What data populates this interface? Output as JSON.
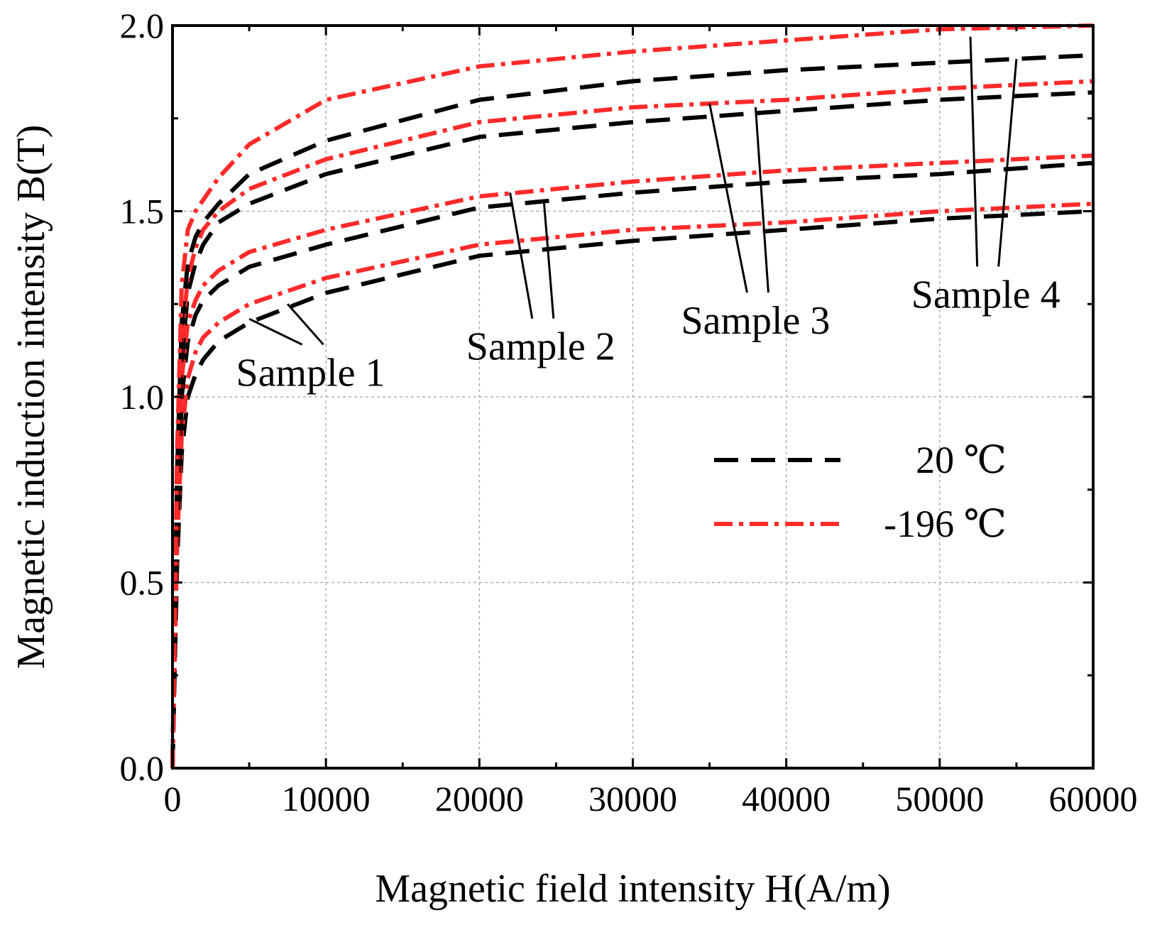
{
  "chart_data": {
    "type": "line",
    "title": "",
    "xlabel": "Magnetic field intensity H(A/m)",
    "ylabel": "Magnetic induction intensity B(T)",
    "xlim": [
      0,
      60000
    ],
    "ylim": [
      0,
      2.0
    ],
    "xticks": [
      0,
      10000,
      20000,
      30000,
      40000,
      50000,
      60000
    ],
    "xtick_labels": [
      "0",
      "10000",
      "20000",
      "30000",
      "40000",
      "50000",
      "60000"
    ],
    "yticks": [
      0,
      0.5,
      1.0,
      1.5,
      2.0
    ],
    "ytick_labels": [
      "0.0",
      "0.5",
      "1.0",
      "1.5",
      "2.0"
    ],
    "grid": true,
    "legend_position": "center-right",
    "legend": [
      {
        "label": "20 ℃",
        "color": "#000000",
        "style": "dashed"
      },
      {
        "label": "-196 ℃",
        "color": "#ff2a2a",
        "style": "dash-dot"
      }
    ],
    "series": [
      {
        "name": "Sample 1, 20 ℃",
        "temperature": "20 ℃",
        "sample": "Sample 1",
        "x": [
          0,
          300,
          600,
          1000,
          1500,
          2000,
          3000,
          5000,
          10000,
          20000,
          30000,
          40000,
          50000,
          60000
        ],
        "y": [
          0,
          0.55,
          0.85,
          1.0,
          1.06,
          1.1,
          1.15,
          1.2,
          1.28,
          1.38,
          1.42,
          1.45,
          1.48,
          1.5
        ]
      },
      {
        "name": "Sample 1, -196 ℃",
        "temperature": "-196 ℃",
        "sample": "Sample 1",
        "x": [
          0,
          300,
          600,
          1000,
          1500,
          2000,
          3000,
          5000,
          10000,
          20000,
          30000,
          40000,
          50000,
          60000
        ],
        "y": [
          0,
          0.6,
          0.9,
          1.05,
          1.12,
          1.16,
          1.2,
          1.25,
          1.32,
          1.41,
          1.45,
          1.47,
          1.5,
          1.52
        ]
      },
      {
        "name": "Sample 2, 20 ℃",
        "temperature": "20 ℃",
        "sample": "Sample 2",
        "x": [
          0,
          300,
          600,
          1000,
          1500,
          2000,
          3000,
          5000,
          10000,
          20000,
          30000,
          40000,
          50000,
          60000
        ],
        "y": [
          0,
          0.65,
          1.0,
          1.15,
          1.22,
          1.26,
          1.3,
          1.35,
          1.41,
          1.51,
          1.55,
          1.58,
          1.6,
          1.63
        ]
      },
      {
        "name": "Sample 2, -196 ℃",
        "temperature": "-196 ℃",
        "sample": "Sample 2",
        "x": [
          0,
          300,
          600,
          1000,
          1500,
          2000,
          3000,
          5000,
          10000,
          20000,
          30000,
          40000,
          50000,
          60000
        ],
        "y": [
          0,
          0.7,
          1.05,
          1.2,
          1.26,
          1.3,
          1.34,
          1.39,
          1.45,
          1.54,
          1.58,
          1.61,
          1.63,
          1.65
        ]
      },
      {
        "name": "Sample 3, 20 ℃",
        "temperature": "20 ℃",
        "sample": "Sample 3",
        "x": [
          0,
          300,
          600,
          1000,
          1500,
          2000,
          3000,
          5000,
          10000,
          20000,
          30000,
          40000,
          50000,
          60000
        ],
        "y": [
          0,
          0.7,
          1.1,
          1.28,
          1.36,
          1.41,
          1.47,
          1.52,
          1.6,
          1.7,
          1.74,
          1.77,
          1.8,
          1.82
        ]
      },
      {
        "name": "Sample 3, -196 ℃",
        "temperature": "-196 ℃",
        "sample": "Sample 3",
        "x": [
          0,
          300,
          600,
          1000,
          1500,
          2000,
          3000,
          5000,
          10000,
          20000,
          30000,
          40000,
          50000,
          60000
        ],
        "y": [
          0,
          0.75,
          1.15,
          1.32,
          1.4,
          1.45,
          1.5,
          1.56,
          1.64,
          1.74,
          1.78,
          1.8,
          1.83,
          1.85
        ]
      },
      {
        "name": "Sample 4, 20 ℃",
        "temperature": "20 ℃",
        "sample": "Sample 4",
        "x": [
          0,
          300,
          600,
          1000,
          1500,
          2000,
          3000,
          5000,
          10000,
          20000,
          30000,
          40000,
          50000,
          60000
        ],
        "y": [
          0,
          0.8,
          1.2,
          1.36,
          1.43,
          1.47,
          1.52,
          1.6,
          1.69,
          1.8,
          1.85,
          1.88,
          1.9,
          1.92
        ]
      },
      {
        "name": "Sample 4, -196 ℃",
        "temperature": "-196 ℃",
        "sample": "Sample 4",
        "x": [
          0,
          300,
          600,
          1000,
          1500,
          2000,
          3000,
          5000,
          10000,
          20000,
          30000,
          40000,
          50000,
          60000
        ],
        "y": [
          0,
          0.85,
          1.3,
          1.45,
          1.5,
          1.53,
          1.59,
          1.68,
          1.8,
          1.89,
          1.93,
          1.96,
          1.99,
          2.0
        ]
      }
    ],
    "annotations": [
      {
        "text": "Sample 1",
        "x": 9000,
        "y": 1.03,
        "targets": [
          [
            5000,
            1.21
          ],
          [
            7500,
            1.25
          ]
        ]
      },
      {
        "text": "Sample 2",
        "x": 24000,
        "y": 1.1,
        "targets": [
          [
            22000,
            1.55
          ],
          [
            24200,
            1.53
          ]
        ]
      },
      {
        "text": "Sample 3",
        "x": 38000,
        "y": 1.17,
        "targets": [
          [
            35000,
            1.79
          ],
          [
            38000,
            1.78
          ]
        ]
      },
      {
        "text": "Sample 4",
        "x": 53000,
        "y": 1.24,
        "targets": [
          [
            52000,
            1.97
          ],
          [
            55000,
            1.91
          ]
        ]
      }
    ]
  }
}
